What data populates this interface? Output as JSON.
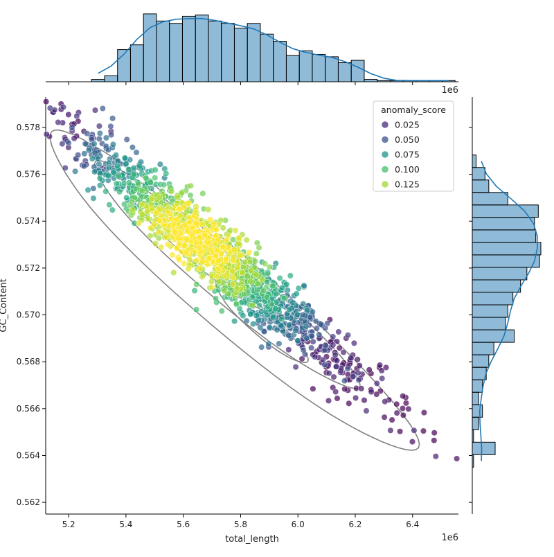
{
  "chart_data": {
    "type": "scatter",
    "subtype": "jointplot with marginal histograms and KDE",
    "xlabel": "total_length",
    "ylabel": "GC_Content",
    "x_scale_note": "1e6",
    "xlim": [
      5.12,
      6.56
    ],
    "ylim": [
      0.5615,
      0.5793
    ],
    "x_ticks": [
      "5.2",
      "5.4",
      "5.6",
      "5.8",
      "6.0",
      "6.2",
      "6.4"
    ],
    "y_ticks": [
      "0.562",
      "0.564",
      "0.566",
      "0.568",
      "0.570",
      "0.572",
      "0.574",
      "0.576",
      "0.578"
    ],
    "legend": {
      "title": "anomaly_score",
      "position": "top-right",
      "entries": [
        {
          "label": "0.025",
          "color": "#472d7b"
        },
        {
          "label": "0.050",
          "color": "#3b528b"
        },
        {
          "label": "0.075",
          "color": "#21918c"
        },
        {
          "label": "0.100",
          "color": "#44bf70"
        },
        {
          "label": "0.125",
          "color": "#a0da39"
        }
      ]
    },
    "colormap": "viridis",
    "color_range": [
      0.0,
      0.15
    ],
    "point_cloud": {
      "n_points": 1500,
      "mean": [
        5.72,
        0.5725
      ],
      "sd_along_trend": 0.24,
      "trend_slope": -0.0101,
      "sd_perpendicular": 0.00075,
      "score_peak": [
        5.63,
        0.5731
      ],
      "opacity": 0.7
    },
    "kde_contours": {
      "color": "#808080",
      "levels": [
        {
          "center": [
            5.76,
            0.571
          ],
          "major": 0.64,
          "minor": 0.00205
        },
        {
          "center": [
            5.74,
            0.5717
          ],
          "major": 0.46,
          "minor": 0.0013
        },
        {
          "center": [
            5.66,
            0.5728
          ],
          "major": 0.26,
          "minor": 0.00082
        },
        {
          "center": [
            5.87,
            0.5697
          ],
          "major": 0.16,
          "minor": 0.00068
        }
      ]
    },
    "x_histogram": {
      "bin_start": 5.28,
      "bin_width": 0.0453,
      "counts": [
        2,
        5,
        27,
        31,
        57,
        51,
        49,
        55,
        56,
        51,
        49,
        45,
        49,
        40,
        34,
        22,
        26,
        23,
        21,
        16,
        18,
        2,
        1,
        1,
        1,
        1,
        1,
        1
      ],
      "color": "#1f77b4"
    },
    "y_histogram": {
      "bin_start": 0.5635,
      "bin_width": 0.000533,
      "counts": [
        1,
        18,
        1,
        5,
        8,
        5,
        8,
        11,
        13,
        17,
        33,
        26,
        28,
        32,
        38,
        43,
        53,
        54,
        50,
        49,
        52,
        28,
        13,
        10,
        3
      ],
      "color": "#1f77b4"
    },
    "kde_line_color": "#1f77b4"
  }
}
